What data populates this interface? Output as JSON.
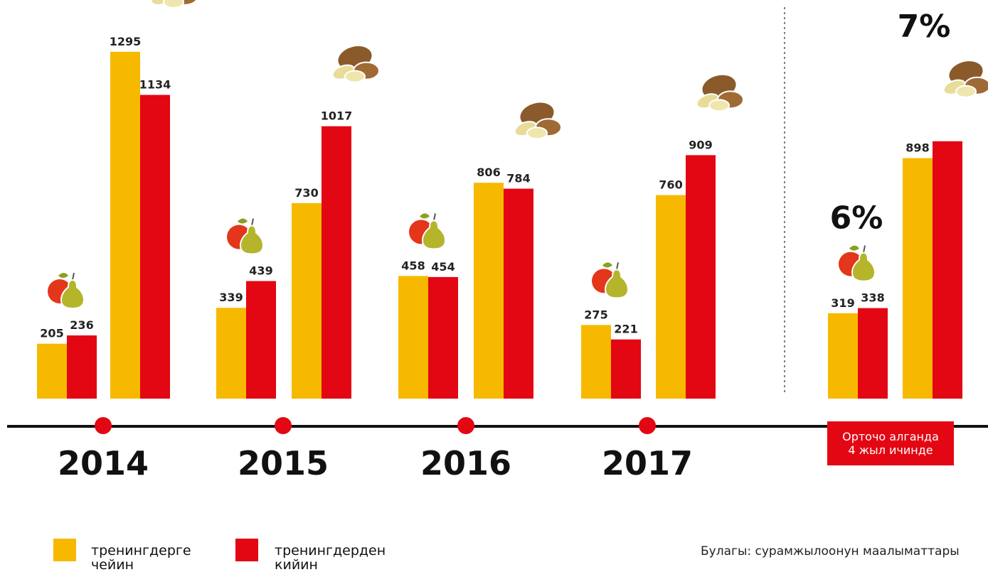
{
  "chart_data": {
    "type": "grouped-bar",
    "categories": [
      "2014",
      "2015",
      "2016",
      "2017",
      null
    ],
    "average_label": [
      "Орточо алганда",
      "4 жыл ичинде"
    ],
    "annotations": {
      "fruit": "6%",
      "potato": "7%"
    },
    "series": [
      {
        "name": "тренингдерге чейин",
        "color": "#f7b900",
        "fruit": [
          205,
          339,
          458,
          275,
          319
        ],
        "potato": [
          1295,
          730,
          806,
          760,
          898
        ]
      },
      {
        "name": "тренингдерден кийин",
        "color": "#e30613",
        "fruit": [
          236,
          439,
          454,
          221,
          338
        ],
        "potato": [
          1134,
          1017,
          784,
          909,
          961
        ],
        "potato_value_labels": [
          "1134",
          "1017",
          "784",
          "909",
          null
        ]
      }
    ],
    "ylim": [
      0,
      1300
    ],
    "source": "Булагы: сурамжылоонун маалыматтары"
  }
}
